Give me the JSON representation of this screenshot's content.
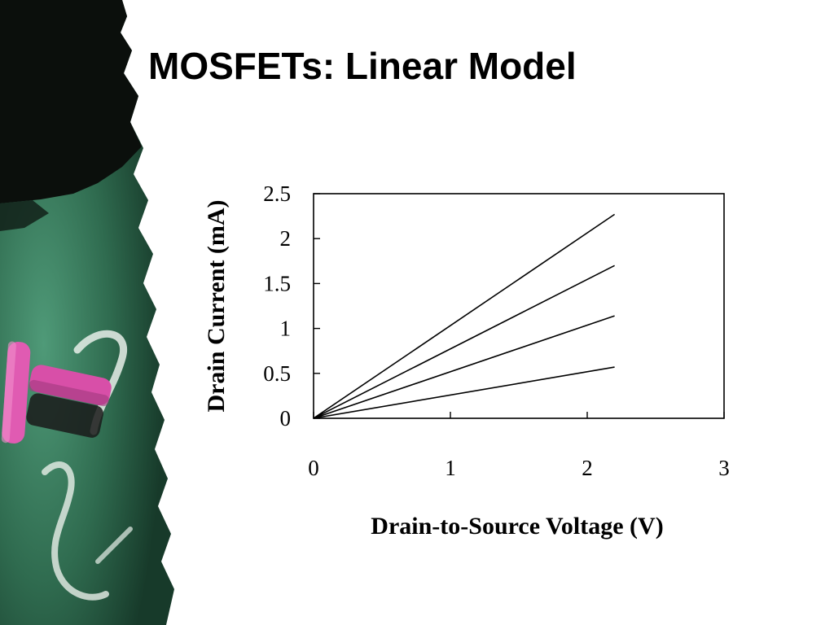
{
  "slide": {
    "title": "MOSFETs: Linear Model"
  },
  "decoration": {
    "icon": "chalkboard-chalk-icon",
    "colors": {
      "board_green": "#2f6b4f",
      "board_black": "#0b0f0c",
      "chalk_pink": "#d84fa8",
      "chalk_white": "#e8efe9"
    }
  },
  "chart_data": {
    "type": "line",
    "xlabel": "Drain-to-Source Voltage (V)",
    "ylabel": "Drain Current (mA)",
    "xlim": [
      0,
      3
    ],
    "ylim": [
      0,
      2.5
    ],
    "xticks": [
      0,
      1,
      2,
      3
    ],
    "yticks": [
      0,
      0.5,
      1,
      1.5,
      2,
      2.5
    ],
    "xtick_labels": [
      "0",
      "1",
      "2",
      "3"
    ],
    "ytick_labels": [
      "0",
      "0.5",
      "1",
      "1.5",
      "2",
      "2.5"
    ],
    "grid": false,
    "legend": "none",
    "series": [
      {
        "x": [
          0,
          2.2
        ],
        "y": [
          0,
          0.57
        ]
      },
      {
        "x": [
          0,
          2.2
        ],
        "y": [
          0,
          1.14
        ]
      },
      {
        "x": [
          0,
          2.2
        ],
        "y": [
          0,
          1.7
        ]
      },
      {
        "x": [
          0,
          2.2
        ],
        "y": [
          0,
          2.27
        ]
      }
    ]
  }
}
